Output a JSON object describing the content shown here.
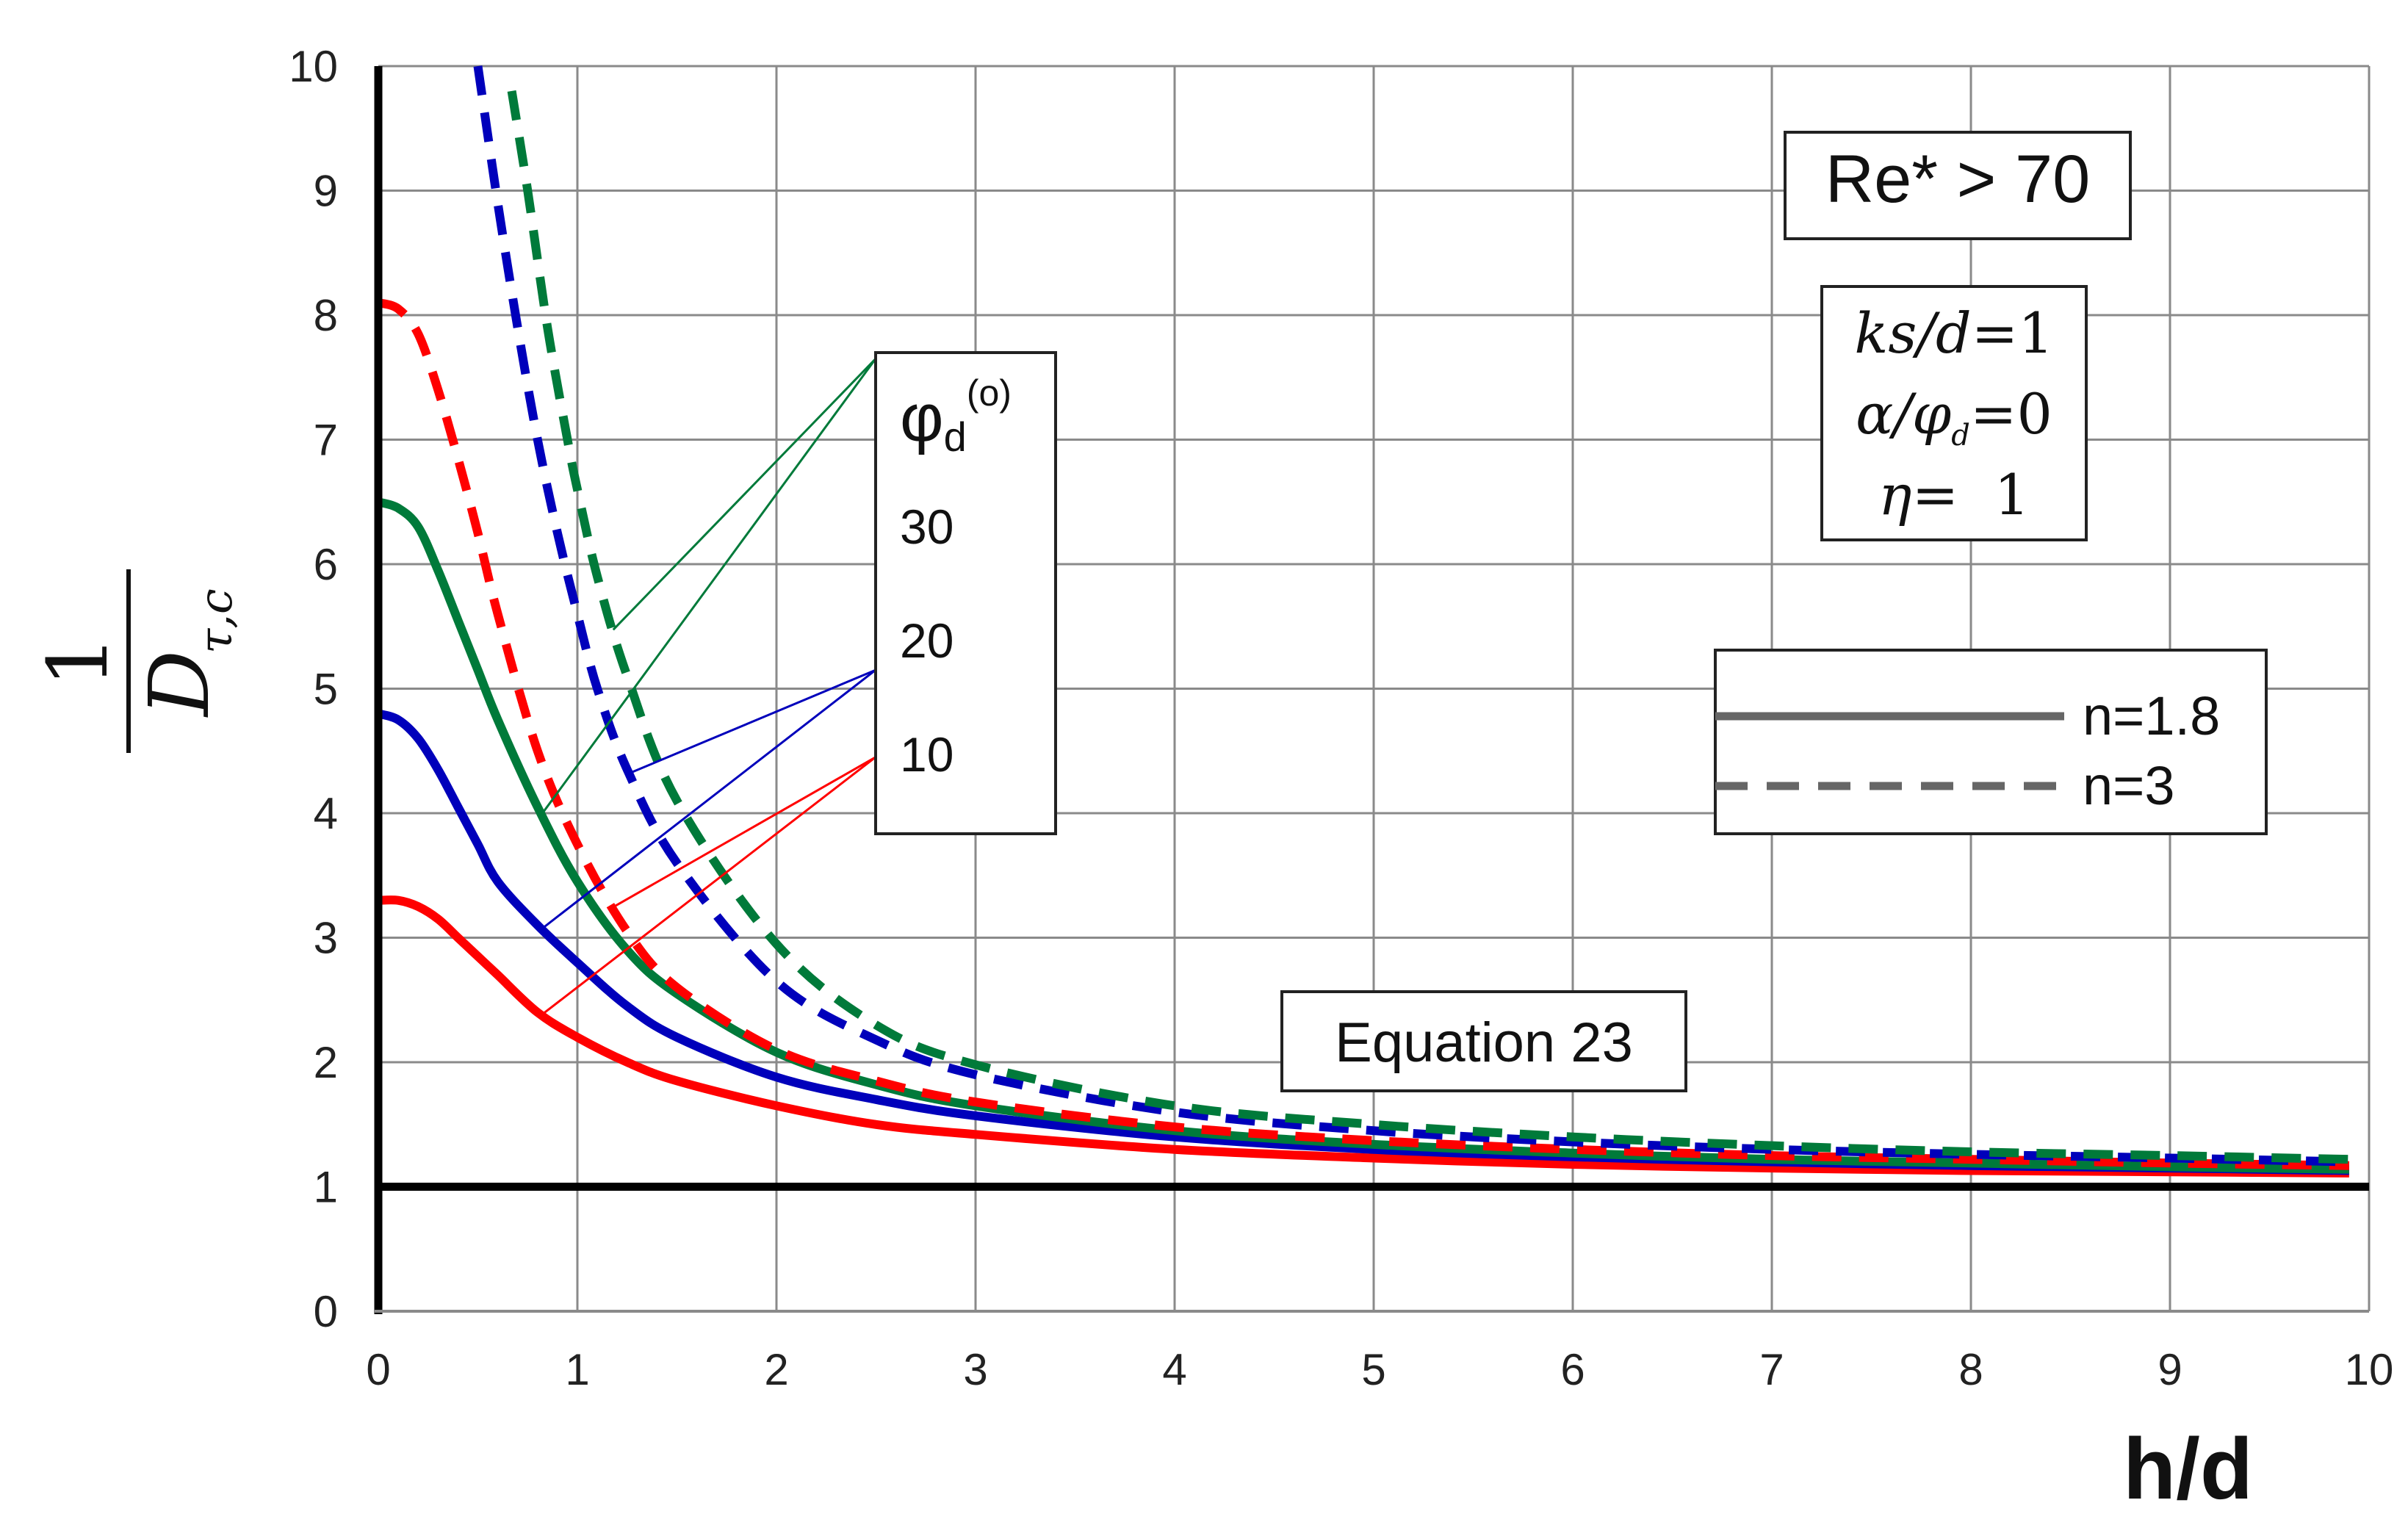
{
  "chart_data": {
    "type": "line",
    "xlabel": "h/d",
    "ylabel": {
      "numerator": "1",
      "denominator": "D",
      "subscript": "τ,c"
    },
    "xlim": [
      0,
      10
    ],
    "ylim": [
      0,
      10
    ],
    "xticks": [
      "0",
      "1",
      "2",
      "3",
      "4",
      "5",
      "6",
      "7",
      "8",
      "9",
      "10"
    ],
    "yticks": [
      "0",
      "1",
      "2",
      "3",
      "4",
      "5",
      "6",
      "7",
      "8",
      "9",
      "10"
    ],
    "grid": true,
    "reference_line": {
      "y": 1,
      "color": "#000000"
    },
    "series": [
      {
        "phi": "10",
        "n": "1.8",
        "dash": "solid",
        "color": "#ff0000",
        "x": [
          0,
          0.1,
          0.2,
          0.3,
          0.4,
          0.5,
          0.6,
          0.8,
          1,
          1.25,
          1.5,
          2,
          2.5,
          3,
          4,
          5,
          6,
          7,
          8,
          9,
          9.9
        ],
        "y": [
          3.3,
          3.3,
          3.25,
          3.15,
          3.0,
          2.85,
          2.7,
          2.4,
          2.2,
          2.0,
          1.85,
          1.65,
          1.5,
          1.42,
          1.3,
          1.23,
          1.18,
          1.15,
          1.13,
          1.12,
          1.11
        ]
      },
      {
        "phi": "20",
        "n": "1.8",
        "dash": "solid",
        "color": "#0000bb",
        "x": [
          0,
          0.1,
          0.2,
          0.3,
          0.4,
          0.5,
          0.6,
          0.8,
          1,
          1.25,
          1.5,
          2,
          2.5,
          3,
          4,
          5,
          6,
          7,
          8,
          9,
          9.9
        ],
        "y": [
          4.8,
          4.75,
          4.6,
          4.35,
          4.05,
          3.75,
          3.45,
          3.1,
          2.8,
          2.45,
          2.2,
          1.88,
          1.7,
          1.57,
          1.4,
          1.3,
          1.24,
          1.2,
          1.17,
          1.15,
          1.13
        ]
      },
      {
        "phi": "30",
        "n": "1.8",
        "dash": "solid",
        "color": "#007a3a",
        "x": [
          0,
          0.1,
          0.2,
          0.3,
          0.4,
          0.5,
          0.6,
          0.8,
          1,
          1.25,
          1.5,
          2,
          2.5,
          3,
          4,
          5,
          6,
          7,
          8,
          9,
          9.9
        ],
        "y": [
          6.5,
          6.45,
          6.3,
          5.95,
          5.55,
          5.15,
          4.75,
          4.05,
          3.45,
          2.9,
          2.55,
          2.08,
          1.82,
          1.65,
          1.45,
          1.34,
          1.27,
          1.22,
          1.19,
          1.16,
          1.14
        ]
      },
      {
        "phi": "10",
        "n": "3",
        "dash": "dashed",
        "color": "#ff0000",
        "x": [
          0,
          0.1,
          0.2,
          0.3,
          0.4,
          0.5,
          0.6,
          0.8,
          1,
          1.25,
          1.5,
          2,
          2.5,
          3,
          4,
          5,
          6,
          7,
          8,
          9,
          9.9
        ],
        "y": [
          8.1,
          8.05,
          7.85,
          7.4,
          6.85,
          6.25,
          5.6,
          4.5,
          3.75,
          3.05,
          2.6,
          2.1,
          1.85,
          1.68,
          1.48,
          1.37,
          1.3,
          1.25,
          1.22,
          1.19,
          1.17
        ]
      },
      {
        "phi": "20",
        "n": "3",
        "dash": "dashed",
        "color": "#0000bb",
        "x": [
          0.5,
          0.6,
          0.7,
          0.8,
          0.9,
          1,
          1.1,
          1.25,
          1.5,
          2,
          2.5,
          3,
          4,
          5,
          6,
          7,
          8,
          9,
          9.9
        ],
        "y": [
          10,
          8.9,
          7.9,
          7.0,
          6.25,
          5.6,
          5.0,
          4.35,
          3.6,
          2.65,
          2.18,
          1.9,
          1.6,
          1.45,
          1.36,
          1.3,
          1.26,
          1.23,
          1.2
        ]
      },
      {
        "phi": "30",
        "n": "3",
        "dash": "dashed",
        "color": "#007a3a",
        "x": [
          0.67,
          0.75,
          0.85,
          0.95,
          1,
          1.1,
          1.25,
          1.5,
          2,
          2.5,
          3,
          4,
          5,
          6,
          7,
          8,
          9,
          9.9
        ],
        "y": [
          9.8,
          9.0,
          7.9,
          7.0,
          6.6,
          5.9,
          5.1,
          4.1,
          2.95,
          2.3,
          1.98,
          1.65,
          1.5,
          1.4,
          1.33,
          1.28,
          1.25,
          1.22
        ]
      }
    ],
    "phi_legend": {
      "title": "φ",
      "title_sub": "d",
      "title_sup": "(o)",
      "entries": [
        {
          "label": "30",
          "color": "#007a3a"
        },
        {
          "label": "20",
          "color": "#0000bb"
        },
        {
          "label": "10",
          "color": "#ff0000"
        }
      ]
    },
    "style_legend": [
      {
        "label": "n=1.8",
        "dash": "solid"
      },
      {
        "label": "n=3",
        "dash": "dashed"
      }
    ],
    "annotations": {
      "reynolds": "Re* > 70",
      "params": {
        "line1": {
          "lhs": "ks/d",
          "rhs": "=1"
        },
        "line2": {
          "lhs": "α/φ",
          "sub": "d",
          "rhs": "=0"
        },
        "line3": {
          "lhs": "η",
          "rhs": "=  1"
        }
      },
      "equation": "Equation 23"
    }
  }
}
